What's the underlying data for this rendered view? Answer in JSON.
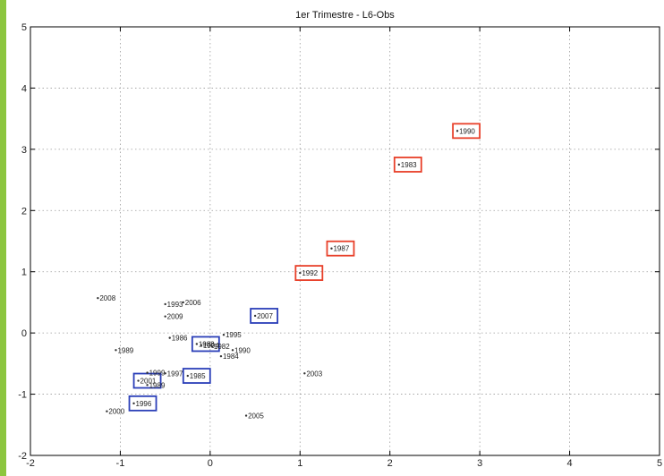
{
  "chart_data": {
    "type": "scatter",
    "title": "1er Trimestre - L6-Obs",
    "xlabel": "",
    "ylabel": "",
    "xlim": [
      -2,
      5
    ],
    "ylim": [
      -2,
      5
    ],
    "xticks": [
      -2,
      -1,
      0,
      1,
      2,
      3,
      4,
      5
    ],
    "yticks": [
      -2,
      -1,
      0,
      1,
      2,
      3,
      4,
      5
    ],
    "grid": true,
    "highlight_colors": {
      "red": "#e8402a",
      "blue": "#2b3fb8"
    },
    "points": [
      {
        "x": 2.85,
        "y": 3.3,
        "label": "1990",
        "box": "red"
      },
      {
        "x": 2.2,
        "y": 2.75,
        "label": "1983",
        "box": "red"
      },
      {
        "x": 1.45,
        "y": 1.38,
        "label": "1987",
        "box": "red"
      },
      {
        "x": 1.1,
        "y": 0.98,
        "label": "1992",
        "box": "red"
      },
      {
        "x": 0.6,
        "y": 0.28,
        "label": "2007",
        "box": "blue"
      },
      {
        "x": -0.05,
        "y": -0.18,
        "label": "1988",
        "box": "blue"
      },
      {
        "x": -0.15,
        "y": -0.7,
        "label": "1985",
        "box": "blue"
      },
      {
        "x": -0.7,
        "y": -0.78,
        "label": "2001",
        "box": "blue"
      },
      {
        "x": -0.75,
        "y": -1.15,
        "label": "1996",
        "box": "blue"
      },
      {
        "x": -1.15,
        "y": 0.57,
        "label": "2008",
        "box": ""
      },
      {
        "x": -0.4,
        "y": 0.47,
        "label": "1993",
        "box": ""
      },
      {
        "x": -0.2,
        "y": 0.5,
        "label": "2006",
        "box": ""
      },
      {
        "x": -0.4,
        "y": 0.27,
        "label": "2009",
        "box": ""
      },
      {
        "x": 0.25,
        "y": -0.03,
        "label": "1995",
        "box": ""
      },
      {
        "x": -0.35,
        "y": -0.08,
        "label": "1986",
        "box": ""
      },
      {
        "x": 0.0,
        "y": -0.2,
        "label": "1994",
        "box": ""
      },
      {
        "x": 0.12,
        "y": -0.22,
        "label": "1982",
        "box": ""
      },
      {
        "x": 0.35,
        "y": -0.28,
        "label": "1990",
        "box": ""
      },
      {
        "x": 0.22,
        "y": -0.38,
        "label": "1984",
        "box": ""
      },
      {
        "x": -0.95,
        "y": -0.28,
        "label": "1989",
        "box": ""
      },
      {
        "x": -0.6,
        "y": -0.65,
        "label": "1999",
        "box": ""
      },
      {
        "x": -0.4,
        "y": -0.66,
        "label": "1997",
        "box": ""
      },
      {
        "x": -0.6,
        "y": -0.85,
        "label": "1989",
        "box": ""
      },
      {
        "x": 1.15,
        "y": -0.66,
        "label": "2003",
        "box": ""
      },
      {
        "x": -1.05,
        "y": -1.28,
        "label": "2000",
        "box": ""
      },
      {
        "x": 0.5,
        "y": -1.35,
        "label": "2005",
        "box": ""
      }
    ]
  }
}
